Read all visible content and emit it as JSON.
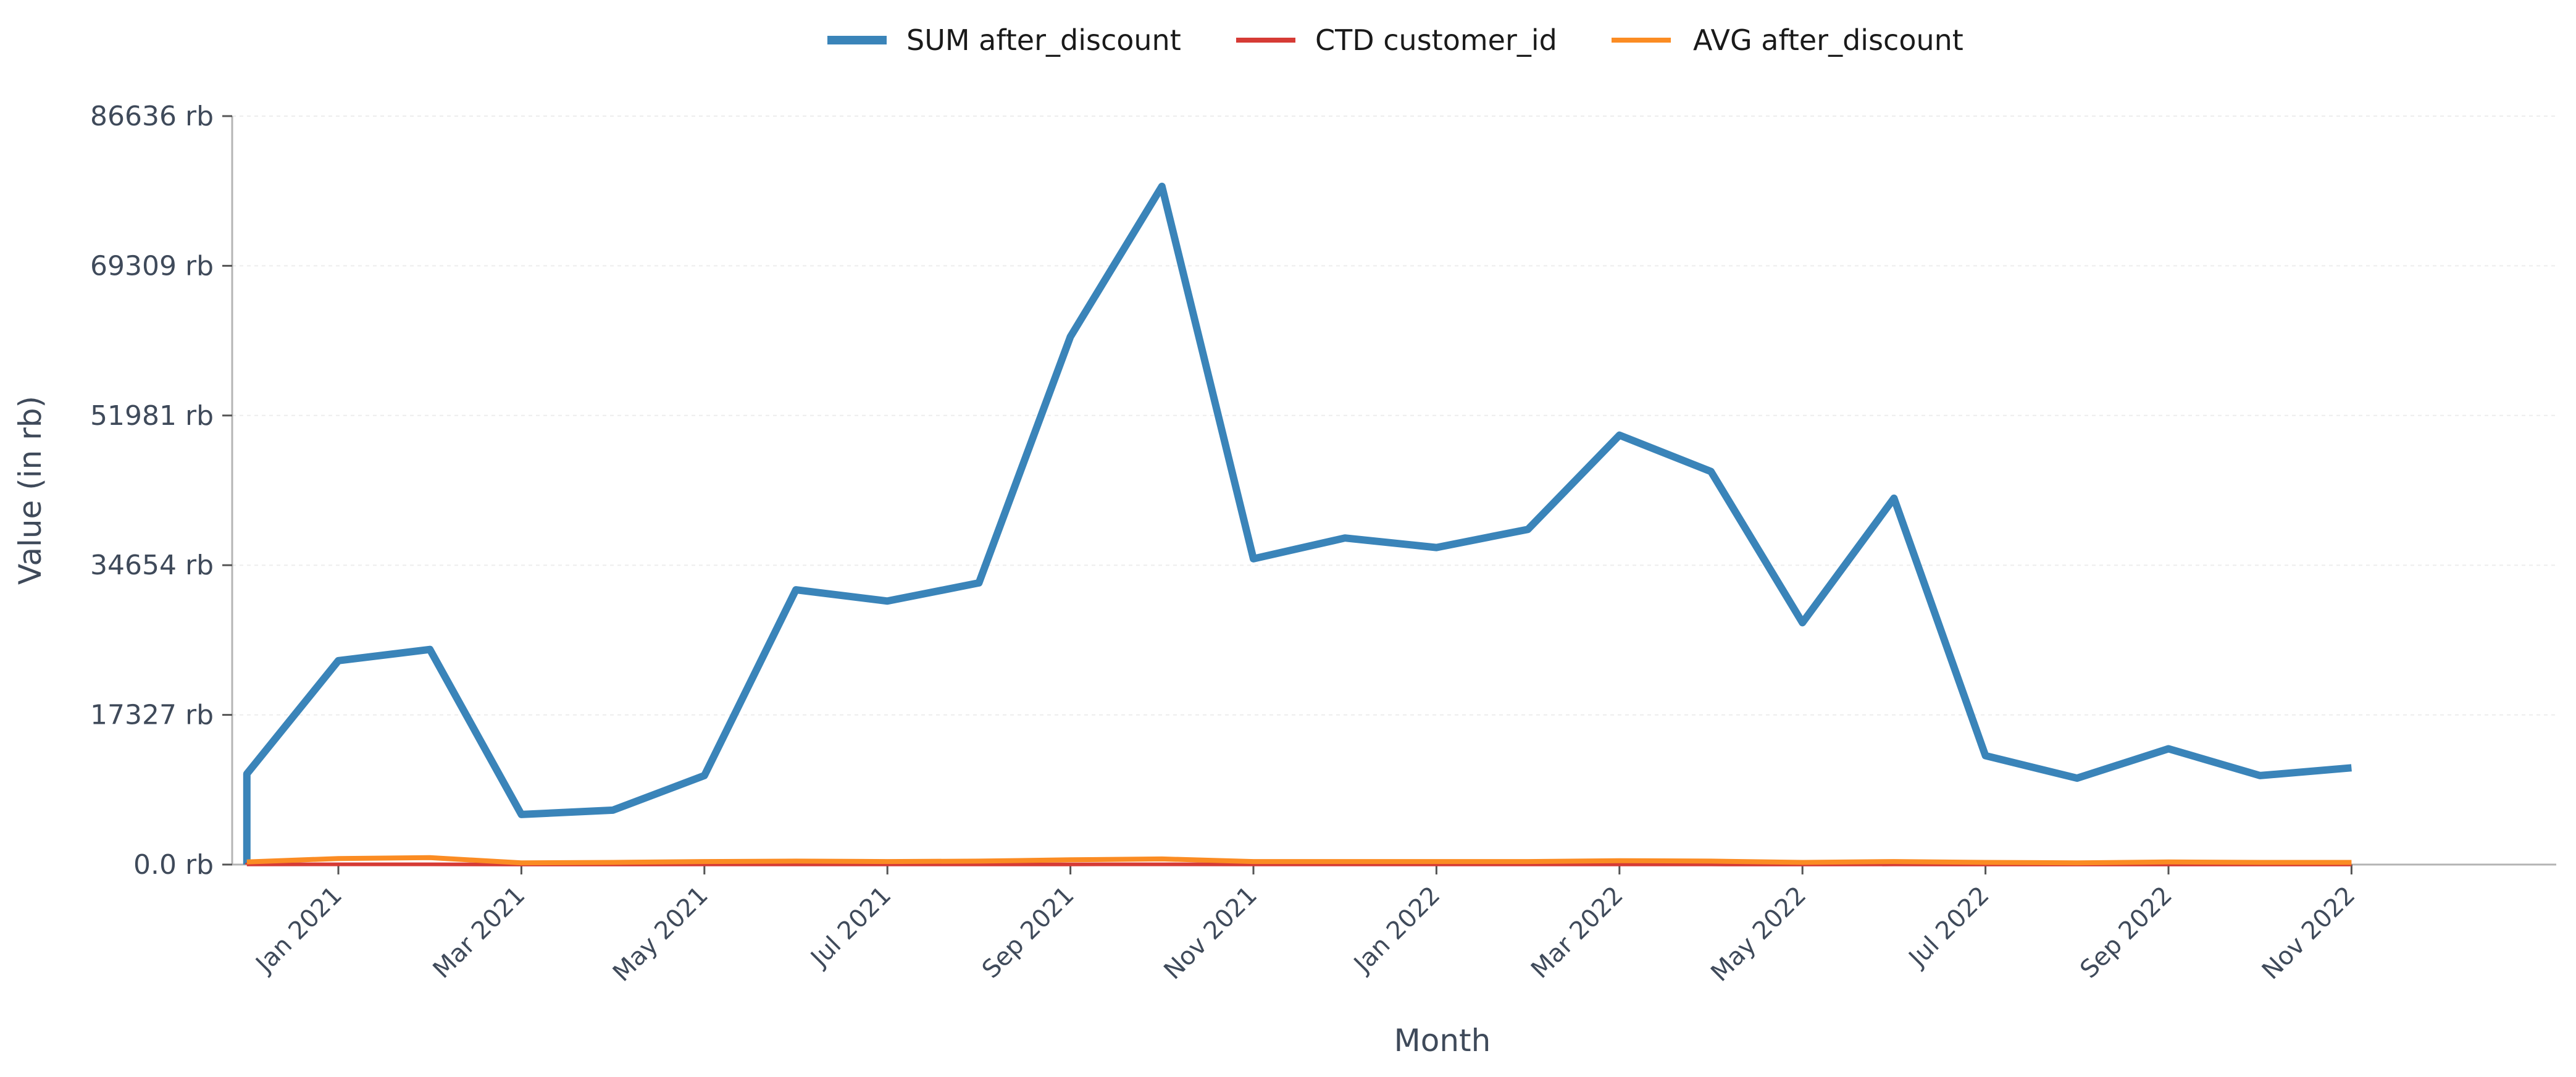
{
  "chart_data": {
    "type": "line",
    "title": "",
    "xlabel": "Month",
    "ylabel": "Value (in rb)",
    "x": [
      "2020-12-01",
      "2020-12-01",
      "2021-01-01",
      "2021-02-01",
      "2021-03-01",
      "2021-04-01",
      "2021-05-01",
      "2021-06-01",
      "2021-07-01",
      "2021-08-01",
      "2021-09-01",
      "2021-10-01",
      "2021-11-01",
      "2021-12-01",
      "2022-01-01",
      "2022-02-01",
      "2022-03-01",
      "2022-04-01",
      "2022-05-01",
      "2022-06-01",
      "2022-07-01",
      "2022-08-01",
      "2022-09-01",
      "2022-10-01",
      "2022-11-01"
    ],
    "x_tick_labels": [
      "Jan 2021",
      "Mar 2021",
      "May 2021",
      "Jul 2021",
      "Sep 2021",
      "Nov 2021",
      "Jan 2022",
      "Mar 2022",
      "May 2022",
      "Jul 2022",
      "Sep 2022",
      "Nov 2022"
    ],
    "x_tick_dates": [
      "2021-01-01",
      "2021-03-01",
      "2021-05-01",
      "2021-07-01",
      "2021-09-01",
      "2021-11-01",
      "2022-01-01",
      "2022-03-01",
      "2022-05-01",
      "2022-07-01",
      "2022-09-01",
      "2022-11-01"
    ],
    "y_tick_labels": [
      "0.0 rb",
      "17327 rb",
      "34654 rb",
      "51981 rb",
      "69309 rb",
      "86636 rb"
    ],
    "y_tick_values": [
      0,
      17327,
      34654,
      51981,
      69309,
      86636
    ],
    "ylim": [
      0,
      86636
    ],
    "grid": true,
    "legend_position": "top-center",
    "series": [
      {
        "name": "SUM after_discount",
        "color": "#3a84b9",
        "values": [
          0,
          10500,
          23600,
          24900,
          5800,
          6300,
          10300,
          31800,
          30500,
          32600,
          61100,
          78500,
          35400,
          37800,
          36700,
          38800,
          49700,
          45500,
          28000,
          42400,
          12600,
          10000,
          13400,
          10300,
          11200
        ]
      },
      {
        "name": "CTD customer_id",
        "color": "#d63b35",
        "values": [
          10,
          12,
          28,
          30,
          10,
          8,
          12,
          14,
          12,
          14,
          22,
          26,
          14,
          14,
          14,
          16,
          18,
          16,
          10,
          14,
          8,
          6,
          10,
          8,
          8
        ]
      },
      {
        "name": "AVG after_discount",
        "color": "#fb8c23",
        "values": [
          300,
          300,
          700,
          800,
          200,
          250,
          350,
          400,
          350,
          400,
          550,
          650,
          350,
          350,
          350,
          350,
          450,
          400,
          250,
          350,
          250,
          200,
          300,
          250,
          250
        ]
      }
    ]
  }
}
